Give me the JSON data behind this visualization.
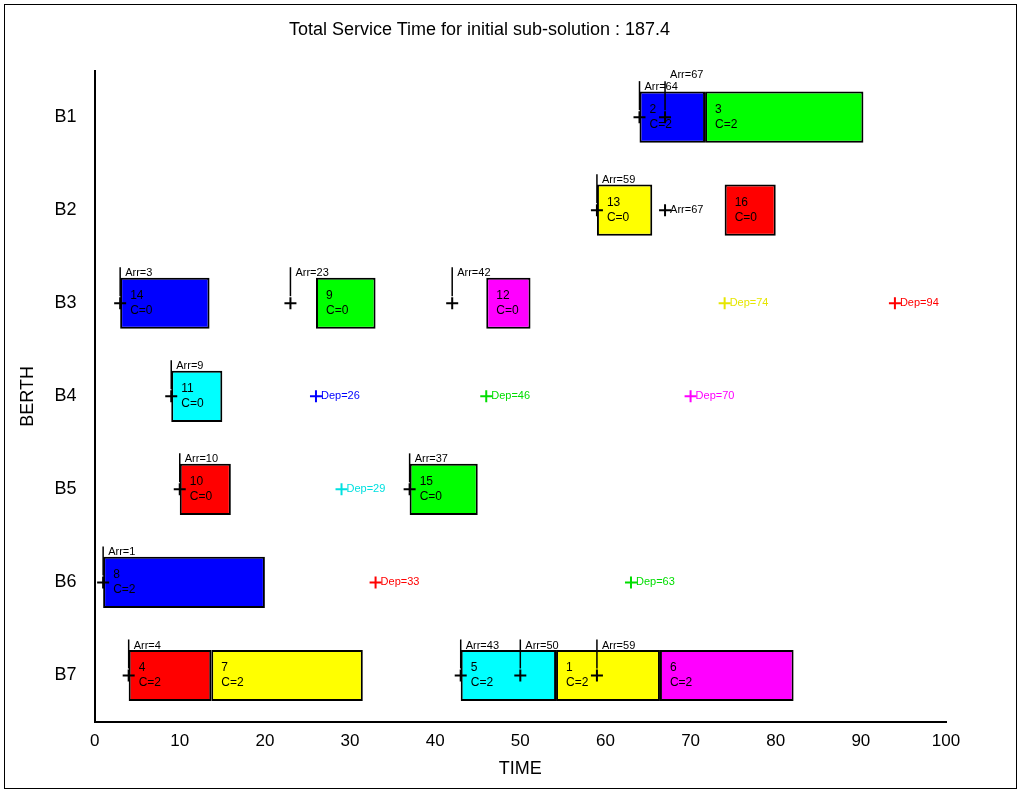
{
  "chart_data": {
    "type": "bar",
    "orientation": "horizontal",
    "title": "Total Service Time for initial sub-solution : 187.4",
    "xlabel": "TIME",
    "ylabel": "BERTH",
    "categories": [
      "B1",
      "B2",
      "B3",
      "B4",
      "B5",
      "B6",
      "B7"
    ],
    "series": [
      {
        "base": [
          64,
          59,
          3,
          9,
          10,
          1,
          4
        ],
        "values": [
          7.7,
          6.5,
          10.5,
          6,
          6,
          19,
          9.7
        ],
        "colors": [
          "#0000ff",
          "#ffff00",
          "#0000ff",
          "#00ffff",
          "#ff0000",
          "#0000ff",
          "#ff0000"
        ]
      },
      {
        "base": [
          71.7,
          74,
          26,
          null,
          37,
          null,
          13.7
        ],
        "values": [
          18.6,
          6,
          7,
          null,
          8,
          null,
          17.8
        ],
        "colors": [
          "#00ff00",
          "#ff0000",
          "#00ff00",
          null,
          "#00ff00",
          null,
          "#ffff00"
        ]
      },
      {
        "base": [
          null,
          null,
          46,
          null,
          null,
          null,
          43
        ],
        "values": [
          null,
          null,
          5.2,
          null,
          null,
          null,
          11.2
        ],
        "colors": [
          null,
          null,
          "#ff00ff",
          null,
          null,
          null,
          "#00ffff"
        ]
      },
      {
        "base": [
          null,
          null,
          null,
          null,
          null,
          null,
          54.2
        ],
        "values": [
          null,
          null,
          null,
          null,
          null,
          null,
          12.2
        ],
        "colors": [
          null,
          null,
          null,
          null,
          null,
          null,
          "#ffff00"
        ]
      },
      {
        "base": [
          null,
          null,
          null,
          null,
          null,
          null,
          66.4
        ],
        "values": [
          null,
          null,
          null,
          null,
          null,
          null,
          15.7
        ],
        "colors": [
          null,
          null,
          null,
          null,
          null,
          null,
          "#ff00ff"
        ]
      },
      {
        "type": "scatter",
        "marker": "cross",
        "x": [
          "B1",
          "B1",
          "B2",
          "B2",
          "B3",
          "B3",
          "B3",
          "B3",
          "B3",
          "B4",
          "B4",
          "B4",
          "B4",
          "B5",
          "B5",
          "B5",
          "B6",
          "B6",
          "B6",
          "B7",
          "B7",
          "B7",
          "B7"
        ],
        "values": [
          64,
          67,
          59,
          67,
          74,
          94,
          3,
          23,
          42,
          26,
          46,
          70,
          9,
          29,
          10,
          37,
          33,
          63,
          1,
          4,
          43,
          50,
          59
        ],
        "colors": [
          "#000000",
          "#000000",
          "#000000",
          "#000000",
          "#e6e600",
          "#ff0000",
          "#000000",
          "#000000",
          "#000000",
          "#0000ff",
          "#00dd00",
          "#ff00ff",
          "#000000",
          "#00e0e0",
          "#000000",
          "#000000",
          "#ff0000",
          "#00dd00",
          "#000000",
          "#000000",
          "#000000",
          "#000000",
          "#000000"
        ],
        "value_labels": [
          "Arr=64",
          "Arr=67",
          "Arr=59",
          "Arr=67",
          "Dep=74",
          "Dep=94",
          "Arr=3",
          "Arr=23",
          "Arr=42",
          "Dep=26",
          "Dep=46",
          "Dep=70",
          "Arr=9",
          "Dep=29",
          "Arr=10",
          "Arr=37",
          "Dep=33",
          "Dep=63",
          "Arr=1",
          "Arr=4",
          "Arr=43",
          "Arr=50",
          "Arr=59"
        ]
      }
    ],
    "xlim": [
      0,
      100
    ],
    "xticks": [
      0,
      10,
      20,
      30,
      40,
      50,
      60,
      70,
      80,
      90,
      100
    ],
    "grid": false,
    "legend": false,
    "annotations": [
      {
        "text": "2\nC=2",
        "x": 64,
        "y": "B1"
      },
      {
        "text": "3\nC=2",
        "x": 71.7,
        "y": "B1"
      },
      {
        "text": "13\nC=0",
        "x": 59,
        "y": "B2"
      },
      {
        "text": "16\nC=0",
        "x": 74,
        "y": "B2"
      },
      {
        "text": "14\nC=0",
        "x": 3,
        "y": "B3"
      },
      {
        "text": "9\nC=0",
        "x": 26,
        "y": "B3"
      },
      {
        "text": "12\nC=0",
        "x": 46,
        "y": "B3"
      },
      {
        "text": "11\nC=0",
        "x": 9,
        "y": "B4"
      },
      {
        "text": "10\nC=0",
        "x": 10,
        "y": "B5"
      },
      {
        "text": "15\nC=0",
        "x": 37,
        "y": "B5"
      },
      {
        "text": "8\nC=2",
        "x": 1,
        "y": "B6"
      },
      {
        "text": "4\nC=2",
        "x": 4,
        "y": "B7"
      },
      {
        "text": "7\nC=2",
        "x": 13.7,
        "y": "B7"
      },
      {
        "text": "5\nC=2",
        "x": 43,
        "y": "B7"
      },
      {
        "text": "1\nC=2",
        "x": 54.2,
        "y": "B7"
      },
      {
        "text": "6\nC=2",
        "x": 66.4,
        "y": "B7"
      }
    ]
  }
}
